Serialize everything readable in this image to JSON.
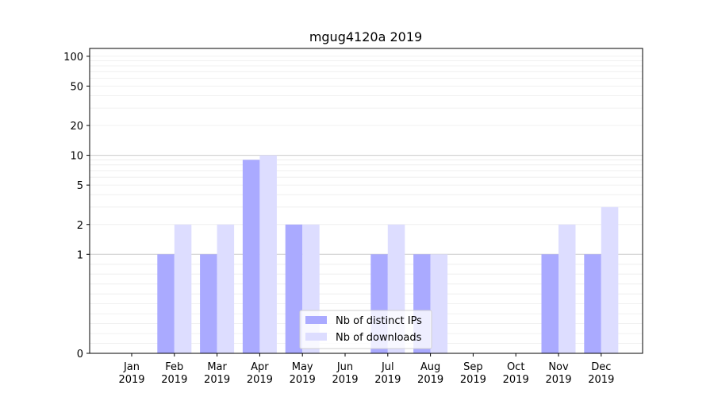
{
  "chart_data": {
    "type": "bar",
    "title": "mgug4120a 2019",
    "scale": "symlog",
    "ylim": [
      0,
      120
    ],
    "y_ticks": [
      0,
      1,
      2,
      5,
      10,
      20,
      50,
      100
    ],
    "y_tick_labels": [
      "0",
      "1",
      "2",
      "5",
      "10",
      "20",
      "50",
      "100"
    ],
    "categories": [
      {
        "month": "Jan",
        "year": "2019"
      },
      {
        "month": "Feb",
        "year": "2019"
      },
      {
        "month": "Mar",
        "year": "2019"
      },
      {
        "month": "Apr",
        "year": "2019"
      },
      {
        "month": "May",
        "year": "2019"
      },
      {
        "month": "Jun",
        "year": "2019"
      },
      {
        "month": "Jul",
        "year": "2019"
      },
      {
        "month": "Aug",
        "year": "2019"
      },
      {
        "month": "Sep",
        "year": "2019"
      },
      {
        "month": "Oct",
        "year": "2019"
      },
      {
        "month": "Nov",
        "year": "2019"
      },
      {
        "month": "Dec",
        "year": "2019"
      }
    ],
    "series": [
      {
        "name": "Nb of distinct IPs",
        "color": "#aaaaff",
        "values": [
          0,
          1,
          1,
          9,
          2,
          0,
          1,
          1,
          0,
          0,
          1,
          1
        ]
      },
      {
        "name": "Nb of downloads",
        "color": "#ddddff",
        "values": [
          0,
          2,
          2,
          10,
          2,
          0,
          2,
          1,
          0,
          0,
          2,
          3
        ]
      }
    ],
    "grid_major_color": "#cccccc",
    "grid_minor_color": "#ececec",
    "legend": {
      "position": "lower-center"
    }
  }
}
